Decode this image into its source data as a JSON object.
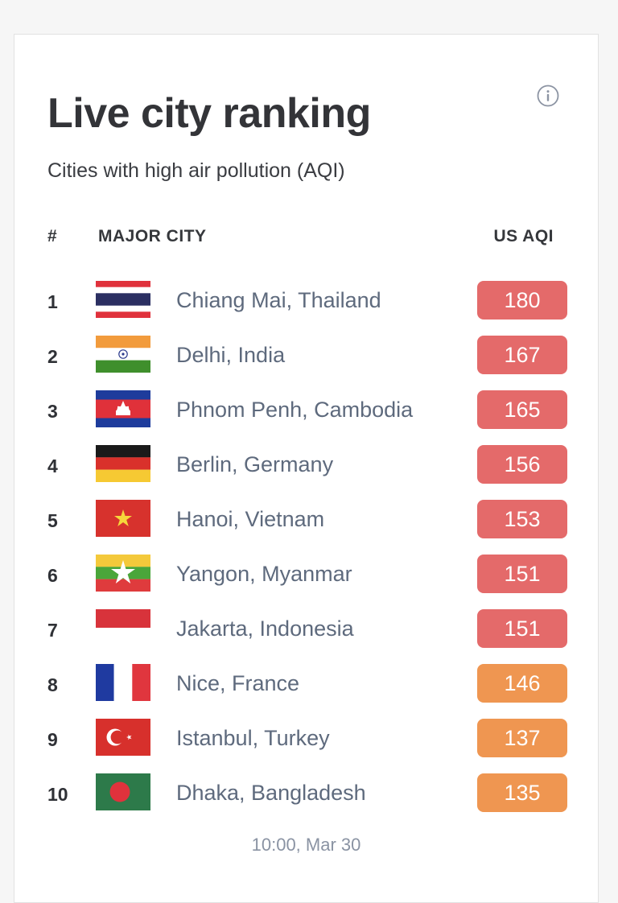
{
  "header": {
    "title": "Live city ranking",
    "subtitle": "Cities with high air pollution (AQI)",
    "info_icon": "info-circle-icon"
  },
  "table": {
    "columns": {
      "rank": "#",
      "city": "MAJOR CITY",
      "aqi": "US AQI"
    },
    "rows": [
      {
        "rank": "1",
        "city": "Chiang Mai, Thailand",
        "aqi": "180",
        "flag": "thailand-flag",
        "level": "unhealthy"
      },
      {
        "rank": "2",
        "city": "Delhi, India",
        "aqi": "167",
        "flag": "india-flag",
        "level": "unhealthy"
      },
      {
        "rank": "3",
        "city": "Phnom Penh, Cambodia",
        "aqi": "165",
        "flag": "cambodia-flag",
        "level": "unhealthy"
      },
      {
        "rank": "4",
        "city": "Berlin, Germany",
        "aqi": "156",
        "flag": "germany-flag",
        "level": "unhealthy"
      },
      {
        "rank": "5",
        "city": "Hanoi, Vietnam",
        "aqi": "153",
        "flag": "vietnam-flag",
        "level": "unhealthy"
      },
      {
        "rank": "6",
        "city": "Yangon, Myanmar",
        "aqi": "151",
        "flag": "myanmar-flag",
        "level": "unhealthy"
      },
      {
        "rank": "7",
        "city": "Jakarta, Indonesia",
        "aqi": "151",
        "flag": "indonesia-flag",
        "level": "unhealthy"
      },
      {
        "rank": "8",
        "city": "Nice, France",
        "aqi": "146",
        "flag": "france-flag",
        "level": "sensitive"
      },
      {
        "rank": "9",
        "city": "Istanbul, Turkey",
        "aqi": "137",
        "flag": "turkey-flag",
        "level": "sensitive"
      },
      {
        "rank": "10",
        "city": "Dhaka, Bangladesh",
        "aqi": "135",
        "flag": "bangladesh-flag",
        "level": "sensitive"
      }
    ]
  },
  "footer": {
    "timestamp": "10:00, Mar 30"
  },
  "colors": {
    "unhealthy": "#e46a6a",
    "sensitive": "#ef9651",
    "city_text": "#5e6a7d",
    "timestamp_text": "#8a93a3"
  }
}
